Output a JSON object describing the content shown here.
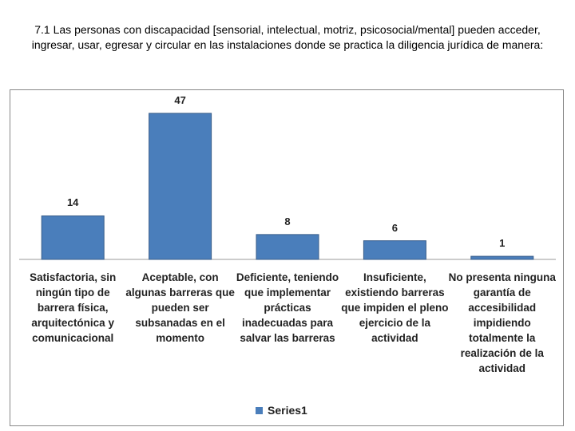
{
  "chart_data": {
    "type": "bar",
    "title": "7.1 Las personas con discapacidad [sensorial, intelectual, motriz, psicosocial/mental] pueden acceder, ingresar, usar, egresar y circular en las instalaciones donde se practica la diligencia jurídica de manera:",
    "categories": [
      "Satisfactoria, sin ningún tipo de barrera física, arquitectónica y comunicacional",
      "Aceptable, con algunas barreras que pueden ser subsanadas en el momento",
      "Deficiente, teniendo que implementar prácticas inadecuadas para salvar las barreras",
      "Insuficiente, existiendo barreras que impiden el pleno ejercicio de la actividad",
      "No presenta ninguna garantía de accesibilidad impidiendo totalmente la realización de la actividad"
    ],
    "series": [
      {
        "name": "Series1",
        "color": "#4a7ebb",
        "values": [
          14,
          47,
          8,
          6,
          1
        ]
      }
    ]
  }
}
